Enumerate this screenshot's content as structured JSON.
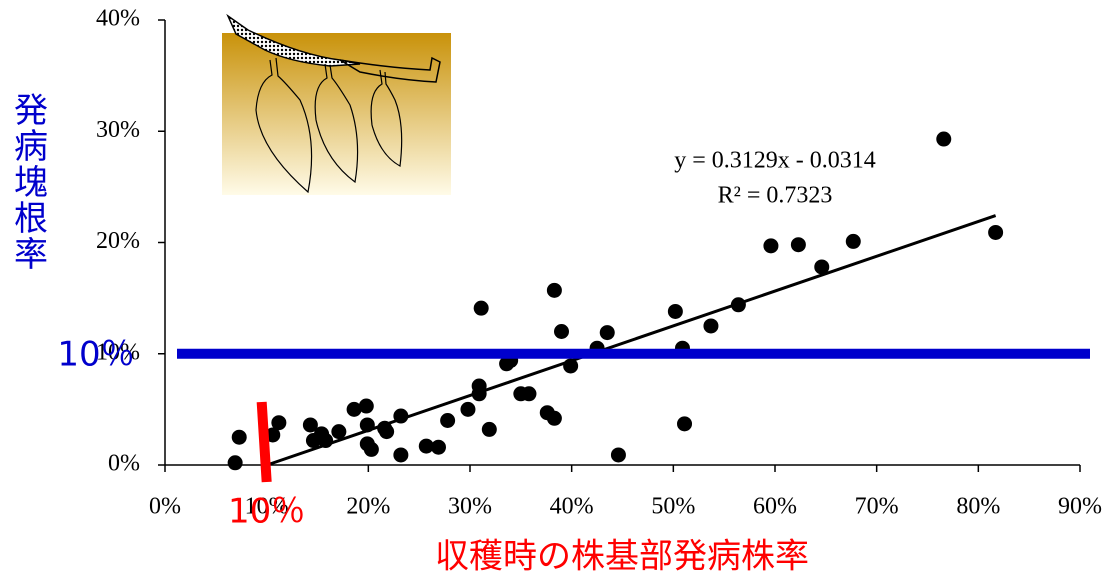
{
  "chart_data": {
    "type": "scatter",
    "x_label": "収穫時の株基部発病株率",
    "y_label": "発病塊根率",
    "color": "#000000",
    "xlim": [
      0,
      0.9
    ],
    "ylim": [
      0,
      0.4
    ],
    "xticks": [
      {
        "value": 0,
        "label": "0%"
      },
      {
        "value": 0.1,
        "label": "10%"
      },
      {
        "value": 0.2,
        "label": "20%"
      },
      {
        "value": 0.3,
        "label": "30%"
      },
      {
        "value": 0.4,
        "label": "40%"
      },
      {
        "value": 0.5,
        "label": "50%"
      },
      {
        "value": 0.6,
        "label": "60%"
      },
      {
        "value": 0.7,
        "label": "70%"
      },
      {
        "value": 0.8,
        "label": "80%"
      },
      {
        "value": 0.9,
        "label": "90%"
      }
    ],
    "yticks": [
      {
        "value": 0,
        "label": "0%"
      },
      {
        "value": 0.1,
        "label": "10%"
      },
      {
        "value": 0.2,
        "label": "20%"
      },
      {
        "value": 0.3,
        "label": "30%"
      },
      {
        "value": 0.4,
        "label": "40%"
      }
    ],
    "x": [
      0.069,
      0.073,
      0.106,
      0.112,
      0.143,
      0.146,
      0.154,
      0.158,
      0.171,
      0.186,
      0.198,
      0.199,
      0.199,
      0.203,
      0.216,
      0.218,
      0.232,
      0.232,
      0.257,
      0.269,
      0.278,
      0.298,
      0.309,
      0.309,
      0.311,
      0.319,
      0.336,
      0.34,
      0.35,
      0.358,
      0.376,
      0.383,
      0.383,
      0.39,
      0.399,
      0.425,
      0.435,
      0.446,
      0.502,
      0.509,
      0.511,
      0.537,
      0.564,
      0.596,
      0.623,
      0.646,
      0.677,
      0.766,
      0.817
    ],
    "values": [
      0.002,
      0.025,
      0.027,
      0.038,
      0.036,
      0.022,
      0.028,
      0.022,
      0.03,
      0.05,
      0.053,
      0.036,
      0.019,
      0.014,
      0.033,
      0.03,
      0.044,
      0.009,
      0.017,
      0.016,
      0.04,
      0.05,
      0.071,
      0.064,
      0.141,
      0.032,
      0.091,
      0.094,
      0.064,
      0.064,
      0.047,
      0.042,
      0.157,
      0.12,
      0.089,
      0.105,
      0.119,
      0.009,
      0.138,
      0.105,
      0.037,
      0.125,
      0.144,
      0.197,
      0.198,
      0.178,
      0.201,
      0.293,
      0.209
    ],
    "trendline": {
      "slope": 0.3129,
      "intercept": -0.0314,
      "x_range": [
        0.1,
        0.817
      ],
      "equation": "y = 0.3129x - 0.0314",
      "r2_label": "R² = 0.7323"
    },
    "reference_lines": [
      {
        "axis": "y",
        "value": 0.1,
        "label": "10％",
        "color": "#0000cc"
      },
      {
        "axis": "x",
        "value": 0.1,
        "label": "10％",
        "color": "#ff0000"
      }
    ]
  }
}
